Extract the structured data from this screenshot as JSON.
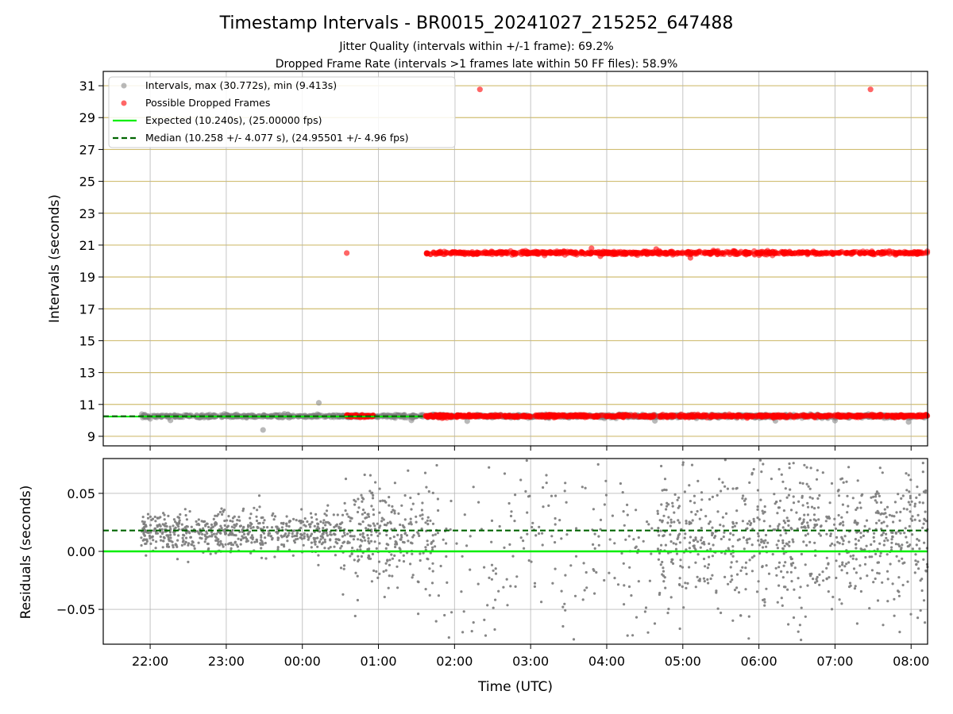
{
  "chart_data": [
    {
      "type": "scatter",
      "panel": "intervals",
      "title": "Timestamp Intervals - BR0015_20241027_215252_647488",
      "subtitle_lines": [
        "Jitter Quality (intervals within +/-1 frame): 69.2%",
        "Dropped Frame Rate (intervals >1 frames late within 50 FF files): 58.9%"
      ],
      "ylabel": "Intervals (seconds)",
      "ylim": [
        8.4,
        31.9
      ],
      "yticks": [
        "9",
        "11",
        "13",
        "15",
        "17",
        "19",
        "21",
        "23",
        "25",
        "27",
        "29",
        "31"
      ],
      "xlim_hours_utc": [
        "21:23",
        "08:13"
      ],
      "grid": true,
      "legend_position": "top-left",
      "legend": [
        "Intervals, max (30.772s), min (9.413s)",
        "Possible Dropped Frames",
        "Expected (10.240s), (25.00000 fps)",
        "Median (10.258 +/- 4.077 s), (24.95501 +/- 4.96 fps)"
      ],
      "expected_interval": 10.24,
      "median_interval": 10.258,
      "series": [
        {
          "name": "Intervals, max (30.772s), min (9.413s)",
          "color": "#808080",
          "clusters": [
            {
              "t_start": "21:53",
              "t_end": "08:13",
              "y_center": 10.26,
              "spread": 0.08
            }
          ],
          "points": [
            {
              "t": "00:13",
              "y": 11.1
            },
            {
              "t": "23:29",
              "y": 9.4
            },
            {
              "t": "22:16",
              "y": 10.0
            },
            {
              "t": "01:26",
              "y": 10.0
            },
            {
              "t": "02:10",
              "y": 9.95
            },
            {
              "t": "04:38",
              "y": 9.97
            },
            {
              "t": "06:13",
              "y": 9.97
            },
            {
              "t": "07:00",
              "y": 9.98
            },
            {
              "t": "07:58",
              "y": 9.9
            }
          ]
        },
        {
          "name": "Possible Dropped Frames",
          "color": "#ff0000",
          "clusters": [
            {
              "t_start": "00:34",
              "t_end": "00:57",
              "y_center": 10.27,
              "spread": 0.07
            },
            {
              "t_start": "01:37",
              "t_end": "08:13",
              "y_center": 10.27,
              "spread": 0.07
            },
            {
              "t_start": "01:37",
              "t_end": "08:13",
              "y_center": 20.51,
              "spread": 0.08
            }
          ],
          "points": [
            {
              "t": "00:35",
              "y": 20.5
            },
            {
              "t": "02:20",
              "y": 30.77
            },
            {
              "t": "07:28",
              "y": 30.77
            },
            {
              "t": "05:06",
              "y": 20.2
            },
            {
              "t": "03:48",
              "y": 20.8
            },
            {
              "t": "03:55",
              "y": 20.3
            },
            {
              "t": "04:39",
              "y": 20.75
            }
          ]
        }
      ]
    },
    {
      "type": "scatter",
      "panel": "residuals",
      "xlabel": "Time (UTC)",
      "ylabel": "Residuals (seconds)",
      "ylim": [
        -0.08,
        0.08
      ],
      "yticks": [
        "−0.05",
        "0.00",
        "0.05"
      ],
      "xticks": [
        "22:00",
        "23:00",
        "00:00",
        "01:00",
        "02:00",
        "03:00",
        "04:00",
        "05:00",
        "06:00",
        "07:00",
        "08:00"
      ],
      "grid": true,
      "expected_residual": 0.0,
      "median_residual": 0.018,
      "series": [
        {
          "name": "Residuals",
          "color": "#808080",
          "bands": [
            {
              "t_start": "21:53",
              "t_end": "00:30",
              "center": 0.016,
              "spread": 0.009,
              "density": "dense"
            },
            {
              "t_start": "00:30",
              "t_end": "01:45",
              "center": 0.013,
              "spread": 0.022,
              "density": "dense"
            },
            {
              "t_start": "01:45",
              "t_end": "04:40",
              "center": 0.0,
              "spread": 0.045,
              "density": "sparse"
            },
            {
              "t_start": "04:40",
              "t_end": "08:13",
              "center": 0.012,
              "spread": 0.032,
              "density": "dense"
            }
          ]
        }
      ]
    }
  ],
  "colors": {
    "expected_line": "#00ee00",
    "median_line": "#006400",
    "intervals_points": "#808080",
    "dropped_points": "#ff0000",
    "minor_gridline": "#c8b35a"
  }
}
